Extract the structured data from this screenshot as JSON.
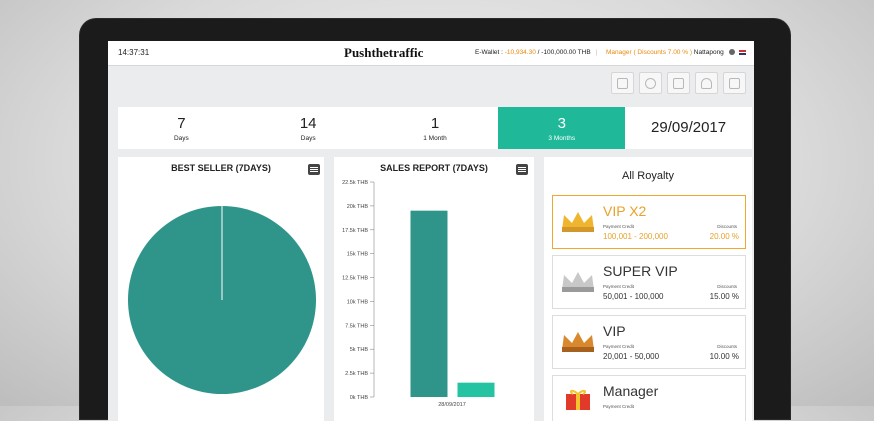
{
  "topbar": {
    "time": "14:37:31",
    "brand": "Pushthetraffic",
    "wallet_label": "E-Wallet :",
    "wallet_value": "-10,934.30",
    "wallet_slash": "/",
    "wallet_limit": "-100,000.00 THB",
    "role": "Manager ( Discounts 7.00 % )",
    "username": "Nattapong"
  },
  "periods": [
    {
      "num": "7",
      "unit": "Days"
    },
    {
      "num": "14",
      "unit": "Days"
    },
    {
      "num": "1",
      "unit": "1 Month"
    },
    {
      "num": "3",
      "unit": "3 Months"
    }
  ],
  "date": "29/09/2017",
  "best_seller": {
    "title": "BEST SELLER (7DAYS)"
  },
  "sales_report": {
    "title": "SALES REPORT (7DAYS)"
  },
  "chart_data": [
    {
      "type": "pie",
      "title": "BEST SELLER (7DAYS)",
      "values": [
        100
      ],
      "colors": [
        "#2f958b"
      ]
    },
    {
      "type": "bar",
      "title": "SALES REPORT (7DAYS)",
      "y_ticks": [
        "0k THB",
        "2.5k THB",
        "5k THB",
        "7.5k THB",
        "10k THB",
        "12.5k THB",
        "15k THB",
        "17.5k THB",
        "20k THB",
        "22.5k THB"
      ],
      "ylim": [
        0,
        22500
      ],
      "categories": [
        "28/09/2017"
      ],
      "series": [
        {
          "values": [
            19500
          ],
          "color": "#2f958b"
        },
        {
          "values": [
            1500
          ],
          "color": "#24c3a1"
        }
      ]
    }
  ],
  "royalty": {
    "title": "All Royalty",
    "tiers": [
      {
        "name": "VIP X2",
        "credit_label": "Payment Credit",
        "credit": "100,001 - 200,000",
        "disc_label": "Discounts",
        "discount": "20.00 %",
        "crown_color": "#f0b52f"
      },
      {
        "name": "SUPER VIP",
        "credit_label": "Payment Credit",
        "credit": "50,001 - 100,000",
        "disc_label": "Discounts",
        "discount": "15.00 %",
        "crown_color": "#b4b4b4"
      },
      {
        "name": "VIP",
        "credit_label": "Payment Credit",
        "credit": "20,001 - 50,000",
        "disc_label": "Discounts",
        "discount": "10.00 %",
        "crown_color": "#d07c26"
      },
      {
        "name": "Manager",
        "credit_label": "Payment Credit",
        "credit": "",
        "disc_label": "",
        "discount": "",
        "crown_color": "#e23a2a"
      }
    ]
  }
}
